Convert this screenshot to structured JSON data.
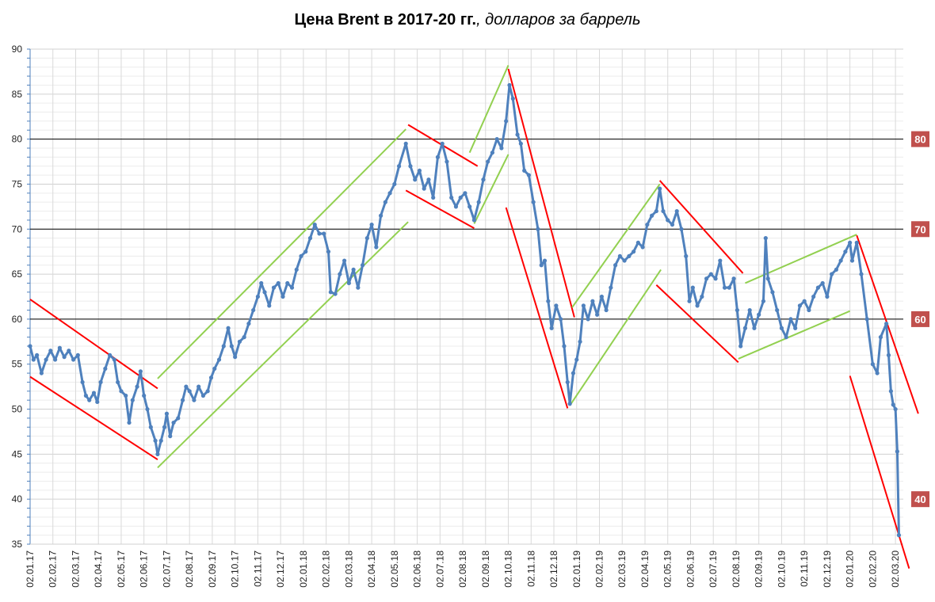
{
  "chart_data": {
    "type": "line",
    "title_bold": "Цена Brent в 2017-20 гг.",
    "title_italic": ", долларов за баррель",
    "xlabel": "",
    "ylabel": "",
    "ylim": [
      35,
      90
    ],
    "yticks": [
      35,
      40,
      45,
      50,
      55,
      60,
      65,
      70,
      75,
      80,
      85,
      90
    ],
    "grid": true,
    "x_tick_labels": [
      "02.01.17",
      "02.02.17",
      "02.03.17",
      "02.04.17",
      "02.05.17",
      "02.06.17",
      "02.07.17",
      "02.08.17",
      "02.09.17",
      "02.10.17",
      "02.11.17",
      "02.12.17",
      "02.01.18",
      "02.02.18",
      "02.03.18",
      "02.04.18",
      "02.05.18",
      "02.06.18",
      "02.07.18",
      "02.08.18",
      "02.09.18",
      "02.10.18",
      "02.11.18",
      "02.12.18",
      "02.01.19",
      "02.02.19",
      "02.03.19",
      "02.04.19",
      "02.05.19",
      "02.06.19",
      "02.07.19",
      "02.08.19",
      "02.09.19",
      "02.10.19",
      "02.11.19",
      "02.12.19",
      "02.01.20",
      "02.02.20",
      "02.03.20"
    ],
    "series_name": "Brent",
    "series_color": "#4f81bd",
    "points_month_index_price": [
      [
        0,
        57
      ],
      [
        0.15,
        55.5
      ],
      [
        0.3,
        56
      ],
      [
        0.5,
        54
      ],
      [
        0.7,
        55.5
      ],
      [
        0.9,
        56.5
      ],
      [
        1.1,
        55.5
      ],
      [
        1.3,
        56.8
      ],
      [
        1.5,
        55.8
      ],
      [
        1.7,
        56.5
      ],
      [
        1.9,
        55.5
      ],
      [
        2.1,
        56
      ],
      [
        2.3,
        53
      ],
      [
        2.45,
        51.5
      ],
      [
        2.6,
        51
      ],
      [
        2.8,
        51.8
      ],
      [
        2.95,
        50.8
      ],
      [
        3.1,
        53
      ],
      [
        3.3,
        54.5
      ],
      [
        3.5,
        56
      ],
      [
        3.7,
        55.5
      ],
      [
        3.85,
        53
      ],
      [
        4,
        52
      ],
      [
        4.2,
        51.5
      ],
      [
        4.35,
        48.5
      ],
      [
        4.5,
        51
      ],
      [
        4.7,
        52.5
      ],
      [
        4.85,
        54.2
      ],
      [
        5,
        51.5
      ],
      [
        5.15,
        50
      ],
      [
        5.3,
        48
      ],
      [
        5.5,
        46.5
      ],
      [
        5.6,
        45
      ],
      [
        5.75,
        46.5
      ],
      [
        5.9,
        48
      ],
      [
        6,
        49.5
      ],
      [
        6.15,
        47
      ],
      [
        6.3,
        48.5
      ],
      [
        6.5,
        49
      ],
      [
        6.7,
        51
      ],
      [
        6.85,
        52.5
      ],
      [
        7,
        52
      ],
      [
        7.2,
        51
      ],
      [
        7.4,
        52.5
      ],
      [
        7.6,
        51.5
      ],
      [
        7.8,
        52
      ],
      [
        7.95,
        53.5
      ],
      [
        8.1,
        54.5
      ],
      [
        8.3,
        55.5
      ],
      [
        8.5,
        57
      ],
      [
        8.7,
        59
      ],
      [
        8.85,
        57
      ],
      [
        9,
        55.8
      ],
      [
        9.2,
        57.5
      ],
      [
        9.4,
        58
      ],
      [
        9.6,
        59.5
      ],
      [
        9.8,
        61
      ],
      [
        10,
        62.5
      ],
      [
        10.15,
        64
      ],
      [
        10.3,
        63
      ],
      [
        10.5,
        61.5
      ],
      [
        10.7,
        63.5
      ],
      [
        10.9,
        64
      ],
      [
        11.1,
        62.5
      ],
      [
        11.3,
        64
      ],
      [
        11.5,
        63.5
      ],
      [
        11.7,
        65.5
      ],
      [
        11.9,
        67
      ],
      [
        12.1,
        67.5
      ],
      [
        12.3,
        69
      ],
      [
        12.5,
        70.5
      ],
      [
        12.7,
        69.5
      ],
      [
        12.9,
        69.5
      ],
      [
        13.1,
        67.5
      ],
      [
        13.2,
        63
      ],
      [
        13.4,
        62.8
      ],
      [
        13.6,
        65
      ],
      [
        13.8,
        66.5
      ],
      [
        14,
        64
      ],
      [
        14.2,
        65.5
      ],
      [
        14.4,
        63.5
      ],
      [
        14.6,
        66
      ],
      [
        14.8,
        69
      ],
      [
        15,
        70.5
      ],
      [
        15.2,
        68
      ],
      [
        15.4,
        71.5
      ],
      [
        15.6,
        73
      ],
      [
        15.8,
        74
      ],
      [
        16,
        75
      ],
      [
        16.2,
        77
      ],
      [
        16.5,
        79.5
      ],
      [
        16.7,
        77
      ],
      [
        16.9,
        75.5
      ],
      [
        17.1,
        76.5
      ],
      [
        17.3,
        74.5
      ],
      [
        17.5,
        75.5
      ],
      [
        17.7,
        73.5
      ],
      [
        17.9,
        78
      ],
      [
        18.1,
        79.5
      ],
      [
        18.3,
        77.5
      ],
      [
        18.5,
        73.5
      ],
      [
        18.7,
        72.5
      ],
      [
        18.9,
        73.5
      ],
      [
        19.1,
        74
      ],
      [
        19.3,
        72.5
      ],
      [
        19.5,
        71
      ],
      [
        19.7,
        73
      ],
      [
        19.9,
        75.5
      ],
      [
        20.1,
        77.5
      ],
      [
        20.3,
        78.5
      ],
      [
        20.5,
        80
      ],
      [
        20.7,
        79
      ],
      [
        20.9,
        82
      ],
      [
        21.05,
        86
      ],
      [
        21.2,
        84.5
      ],
      [
        21.4,
        80.5
      ],
      [
        21.55,
        79.5
      ],
      [
        21.7,
        76.5
      ],
      [
        21.9,
        76
      ],
      [
        22.1,
        73
      ],
      [
        22.3,
        70
      ],
      [
        22.45,
        66
      ],
      [
        22.6,
        66.5
      ],
      [
        22.75,
        62
      ],
      [
        22.9,
        59
      ],
      [
        23.1,
        61.5
      ],
      [
        23.3,
        60
      ],
      [
        23.45,
        57
      ],
      [
        23.6,
        53
      ],
      [
        23.7,
        50.6
      ],
      [
        23.85,
        54
      ],
      [
        24,
        55.5
      ],
      [
        24.15,
        57.5
      ],
      [
        24.3,
        61.5
      ],
      [
        24.5,
        60
      ],
      [
        24.7,
        62
      ],
      [
        24.9,
        60.5
      ],
      [
        25.1,
        62.5
      ],
      [
        25.3,
        61
      ],
      [
        25.5,
        63.5
      ],
      [
        25.7,
        66
      ],
      [
        25.9,
        67
      ],
      [
        26.1,
        66.5
      ],
      [
        26.3,
        67
      ],
      [
        26.5,
        67.5
      ],
      [
        26.7,
        68.5
      ],
      [
        26.9,
        68
      ],
      [
        27.1,
        70.5
      ],
      [
        27.3,
        71.5
      ],
      [
        27.5,
        72
      ],
      [
        27.65,
        74.5
      ],
      [
        27.8,
        72
      ],
      [
        28,
        71
      ],
      [
        28.2,
        70.5
      ],
      [
        28.4,
        72
      ],
      [
        28.6,
        70
      ],
      [
        28.8,
        67
      ],
      [
        28.95,
        62
      ],
      [
        29.1,
        63.5
      ],
      [
        29.3,
        61.5
      ],
      [
        29.5,
        62.5
      ],
      [
        29.7,
        64.5
      ],
      [
        29.9,
        65
      ],
      [
        30.1,
        64.5
      ],
      [
        30.3,
        66.5
      ],
      [
        30.5,
        63.5
      ],
      [
        30.7,
        63.5
      ],
      [
        30.9,
        64.5
      ],
      [
        31.05,
        61
      ],
      [
        31.2,
        57
      ],
      [
        31.4,
        59
      ],
      [
        31.6,
        61
      ],
      [
        31.8,
        59
      ],
      [
        32,
        60.5
      ],
      [
        32.2,
        62
      ],
      [
        32.3,
        69
      ],
      [
        32.4,
        64.5
      ],
      [
        32.6,
        63
      ],
      [
        32.8,
        61
      ],
      [
        33,
        59
      ],
      [
        33.2,
        58
      ],
      [
        33.4,
        60
      ],
      [
        33.6,
        59
      ],
      [
        33.8,
        61.5
      ],
      [
        34,
        62
      ],
      [
        34.2,
        61
      ],
      [
        34.4,
        62.5
      ],
      [
        34.6,
        63.5
      ],
      [
        34.8,
        64
      ],
      [
        35,
        62.5
      ],
      [
        35.2,
        65
      ],
      [
        35.4,
        65.5
      ],
      [
        35.6,
        66.5
      ],
      [
        35.8,
        67.5
      ],
      [
        36,
        68.5
      ],
      [
        36.1,
        66.5
      ],
      [
        36.3,
        68.5
      ],
      [
        36.5,
        65
      ],
      [
        36.75,
        60
      ],
      [
        37,
        55
      ],
      [
        37.2,
        54
      ],
      [
        37.35,
        58
      ],
      [
        37.6,
        59.5
      ],
      [
        37.7,
        56
      ],
      [
        37.8,
        52
      ],
      [
        37.9,
        50.5
      ],
      [
        38,
        50
      ],
      [
        38.08,
        45.3
      ],
      [
        38.15,
        36
      ]
    ],
    "reference_lines": [
      80,
      70,
      60
    ],
    "level_labels": [
      "80",
      "70",
      "60",
      "40"
    ],
    "level_values": [
      80,
      70,
      60,
      40
    ],
    "level_label_color": "#c0504d",
    "trend_lines": [
      {
        "color": "#ff0000",
        "from": [
          0,
          62.2
        ],
        "to": [
          5.6,
          52.3
        ]
      },
      {
        "color": "#ff0000",
        "from": [
          0,
          53.6
        ],
        "to": [
          5.6,
          44.4
        ]
      },
      {
        "color": "#92d050",
        "from": [
          5.6,
          53.4
        ],
        "to": [
          16.5,
          81.1
        ]
      },
      {
        "color": "#92d050",
        "from": [
          5.6,
          43.5
        ],
        "to": [
          16.6,
          70.8
        ]
      },
      {
        "color": "#ff0000",
        "from": [
          16.6,
          81.6
        ],
        "to": [
          19.65,
          77.0
        ]
      },
      {
        "color": "#ff0000",
        "from": [
          16.5,
          74.3
        ],
        "to": [
          19.5,
          70.1
        ]
      },
      {
        "color": "#92d050",
        "from": [
          19.3,
          78.5
        ],
        "to": [
          21.0,
          88.2
        ]
      },
      {
        "color": "#92d050",
        "from": [
          19.5,
          70.6
        ],
        "to": [
          21.0,
          78.3
        ]
      },
      {
        "color": "#ff0000",
        "from": [
          21.0,
          87.8
        ],
        "to": [
          23.9,
          60.2
        ]
      },
      {
        "color": "#ff0000",
        "from": [
          20.9,
          72.4
        ],
        "to": [
          23.6,
          50.1
        ]
      },
      {
        "color": "#92d050",
        "from": [
          23.8,
          61.3
        ],
        "to": [
          27.65,
          75.0
        ]
      },
      {
        "color": "#92d050",
        "from": [
          23.7,
          50.4
        ],
        "to": [
          27.7,
          65.5
        ]
      },
      {
        "color": "#ff0000",
        "from": [
          27.65,
          75.4
        ],
        "to": [
          31.3,
          65.1
        ]
      },
      {
        "color": "#ff0000",
        "from": [
          27.5,
          63.8
        ],
        "to": [
          31.1,
          55.2
        ]
      },
      {
        "color": "#92d050",
        "from": [
          31.4,
          64.0
        ],
        "to": [
          36.3,
          69.4
        ]
      },
      {
        "color": "#92d050",
        "from": [
          31.1,
          55.6
        ],
        "to": [
          36.0,
          60.9
        ]
      },
      {
        "color": "#ff0000",
        "from": [
          36.3,
          69.3
        ],
        "to": [
          39.0,
          49.5
        ]
      },
      {
        "color": "#ff0000",
        "from": [
          36.0,
          53.7
        ],
        "to": [
          38.6,
          32.3
        ]
      }
    ]
  }
}
